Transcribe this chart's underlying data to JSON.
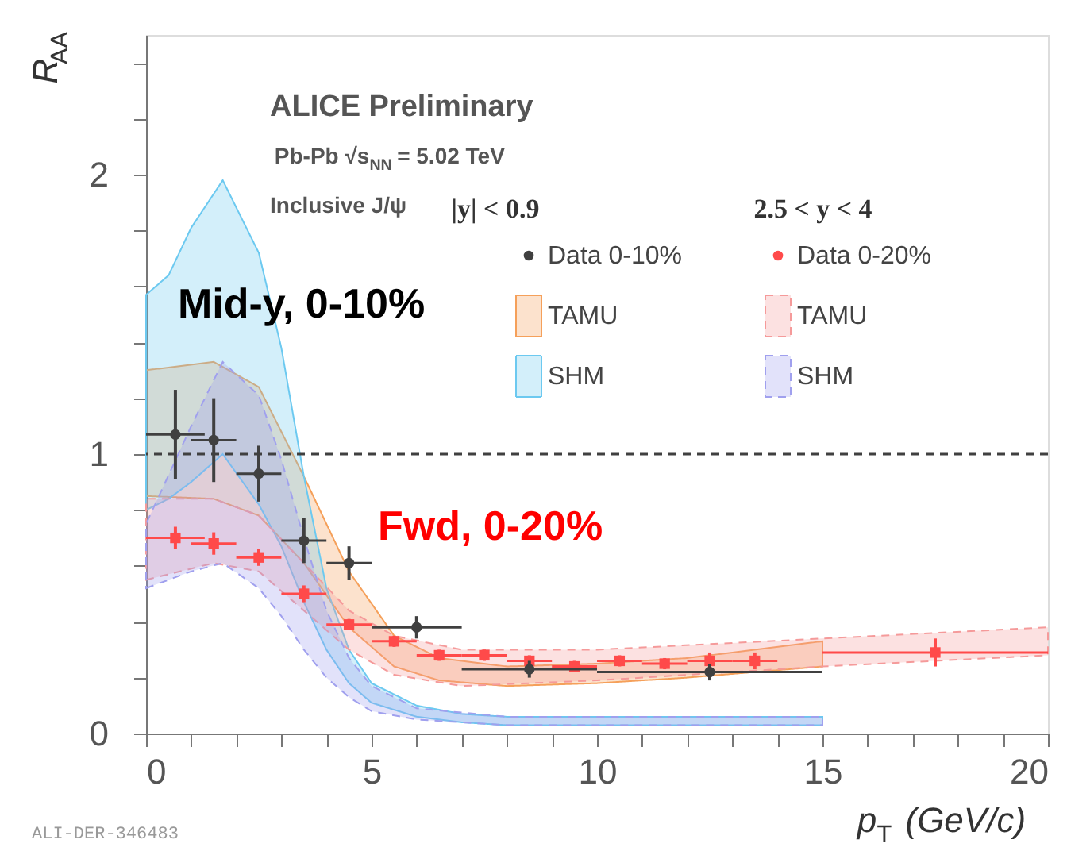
{
  "chart_data": {
    "type": "scatter",
    "xlabel": "p$_{T}$ (GeV/c)",
    "ylabel": "R$_{AA}$",
    "xlim": [
      0,
      20
    ],
    "ylim": [
      0,
      2.5
    ],
    "xticks": [
      0,
      {
        "value": 1,
        "label": null
      },
      {
        "value": 2,
        "label": null
      },
      {
        "value": 3,
        "label": null
      },
      {
        "value": 4,
        "label": null
      },
      5,
      {
        "value": 6,
        "label": null
      },
      {
        "value": 7,
        "label": null
      },
      {
        "value": 8,
        "label": null
      },
      {
        "value": 9,
        "label": null
      },
      10,
      {
        "value": 11,
        "label": null
      },
      {
        "value": 12,
        "label": null
      },
      {
        "value": 13,
        "label": null
      },
      {
        "value": 14,
        "label": null
      },
      15,
      {
        "value": 16,
        "label": null
      },
      {
        "value": 17,
        "label": null
      },
      {
        "value": 18,
        "label": null
      },
      {
        "value": 19,
        "label": null
      },
      20
    ],
    "yticks": [
      0,
      {
        "value": 0.2,
        "label": null
      },
      {
        "value": 0.4,
        "label": null
      },
      {
        "value": 0.6,
        "label": null
      },
      {
        "value": 0.8,
        "label": null
      },
      1,
      {
        "value": 1.2,
        "label": null
      },
      {
        "value": 1.4,
        "label": null
      },
      {
        "value": 1.6,
        "label": null
      },
      {
        "value": 1.8,
        "label": null
      },
      2,
      {
        "value": 2.2,
        "label": null
      },
      {
        "value": 2.4,
        "label": null
      }
    ],
    "grid": false,
    "legend": "top right",
    "series": [
      {
        "name": "Data 0-10%",
        "marker": "circle",
        "color": "#404040",
        "x": [
          0.65,
          1.5,
          2.5,
          3.5,
          4.5,
          6,
          8.5,
          12.5
        ],
        "values": [
          1.07,
          1.05,
          0.93,
          0.69,
          0.61,
          0.38,
          0.23,
          0.22
        ],
        "errors": [
          0.16,
          0.15,
          0.1,
          0.08,
          0.06,
          0.04,
          0.03,
          0.03
        ],
        "xerrors": [
          0.65,
          0.5,
          0.5,
          0.5,
          0.5,
          1,
          1.5,
          2.5
        ]
      },
      {
        "name": "TAMU",
        "type": "area",
        "line_style": "solid",
        "color": "#f5a05a",
        "x": [
          0,
          1.5,
          2.5,
          3.5,
          4.5,
          5.5,
          6.5,
          8,
          10,
          12,
          15
        ],
        "values": [
          null,
          null,
          null,
          null,
          null,
          null,
          null,
          null,
          null,
          null,
          null
        ],
        "lower": [
          0.85,
          0.84,
          0.78,
          0.61,
          0.38,
          0.24,
          0.19,
          0.17,
          0.18,
          0.2,
          0.24
        ],
        "upper": [
          1.3,
          1.33,
          1.24,
          0.92,
          0.58,
          0.35,
          0.27,
          0.24,
          0.25,
          0.27,
          0.33
        ]
      },
      {
        "name": "SHM",
        "type": "area",
        "line_style": "solid",
        "color": "#6cc9f0",
        "x": [
          0,
          0.5,
          1,
          1.7,
          2.5,
          3,
          3.5,
          4,
          4.5,
          5,
          6,
          7,
          8,
          15
        ],
        "values": [
          null,
          null,
          null,
          null,
          null,
          null,
          null,
          null,
          null,
          null,
          null,
          null,
          null,
          null
        ],
        "lower": [
          0.8,
          0.84,
          0.9,
          1.0,
          0.82,
          0.67,
          0.47,
          0.3,
          0.18,
          0.11,
          0.06,
          0.04,
          0.03,
          0.03
        ],
        "upper": [
          1.57,
          1.64,
          1.81,
          1.98,
          1.72,
          1.38,
          0.92,
          0.52,
          0.3,
          0.18,
          0.1,
          0.07,
          0.06,
          0.06
        ]
      },
      {
        "name": "Data 0-20%",
        "marker": "square",
        "color": "#ff4a4a",
        "x": [
          0.65,
          1.5,
          2.5,
          3.5,
          4.5,
          5.5,
          6.5,
          7.5,
          8.5,
          9.5,
          10.5,
          11.5,
          12.5,
          13.5,
          17.5
        ],
        "values": [
          0.7,
          0.68,
          0.63,
          0.5,
          0.39,
          0.33,
          0.28,
          0.28,
          0.26,
          0.24,
          0.26,
          0.25,
          0.26,
          0.26,
          0.29
        ],
        "errors": [
          0.04,
          0.04,
          0.03,
          0.03,
          0.02,
          0.02,
          0.02,
          0.02,
          0.02,
          0.02,
          0.02,
          0.02,
          0.03,
          0.03,
          0.05
        ],
        "xerrors": [
          0.65,
          0.5,
          0.5,
          0.5,
          0.5,
          0.5,
          0.5,
          0.5,
          0.5,
          0.5,
          0.5,
          0.5,
          0.5,
          0.5,
          2.5
        ]
      },
      {
        "name": "TAMU",
        "type": "area",
        "line_style": "dashed",
        "color": "#f59a9a",
        "x": [
          0,
          1.5,
          2.5,
          3.5,
          4.5,
          5.5,
          7,
          10,
          15,
          20
        ],
        "values": [
          null,
          null,
          null,
          null,
          null,
          null,
          null,
          null,
          null,
          null
        ],
        "lower": [
          0.55,
          0.61,
          0.58,
          0.44,
          0.3,
          0.21,
          0.17,
          0.19,
          0.24,
          0.28
        ],
        "upper": [
          0.84,
          0.84,
          0.78,
          0.61,
          0.44,
          0.35,
          0.3,
          0.3,
          0.34,
          0.38
        ]
      },
      {
        "name": "SHM",
        "type": "area",
        "line_style": "dashed",
        "color": "#a0a0ee",
        "x": [
          0,
          1,
          1.7,
          2.5,
          3,
          3.5,
          4,
          4.5,
          5,
          6,
          8,
          15
        ],
        "values": [
          null,
          null,
          null,
          null,
          null,
          null,
          null,
          null,
          null,
          null,
          null,
          null
        ],
        "lower": [
          0.52,
          0.58,
          0.61,
          0.52,
          0.42,
          0.3,
          0.2,
          0.13,
          0.08,
          0.05,
          0.03,
          0.03
        ],
        "upper": [
          0.75,
          1.1,
          1.33,
          1.21,
          0.98,
          0.7,
          0.44,
          0.27,
          0.17,
          0.09,
          0.06,
          0.06
        ]
      }
    ],
    "ref_lines": [
      {
        "axis": "y",
        "value": 1,
        "color": "#404040",
        "line_style": "dashed"
      }
    ],
    "annotations": [
      "ALICE Preliminary",
      "Pb-Pb √s$_{NN}$ = 5.02 TeV",
      "Inclusive J/ψ",
      "Mid-y, 0-10%",
      "Fwd, 0-20%",
      "|y| < 0.9",
      "2.5 <  y < 4",
      "ALI-DER-346483"
    ]
  }
}
